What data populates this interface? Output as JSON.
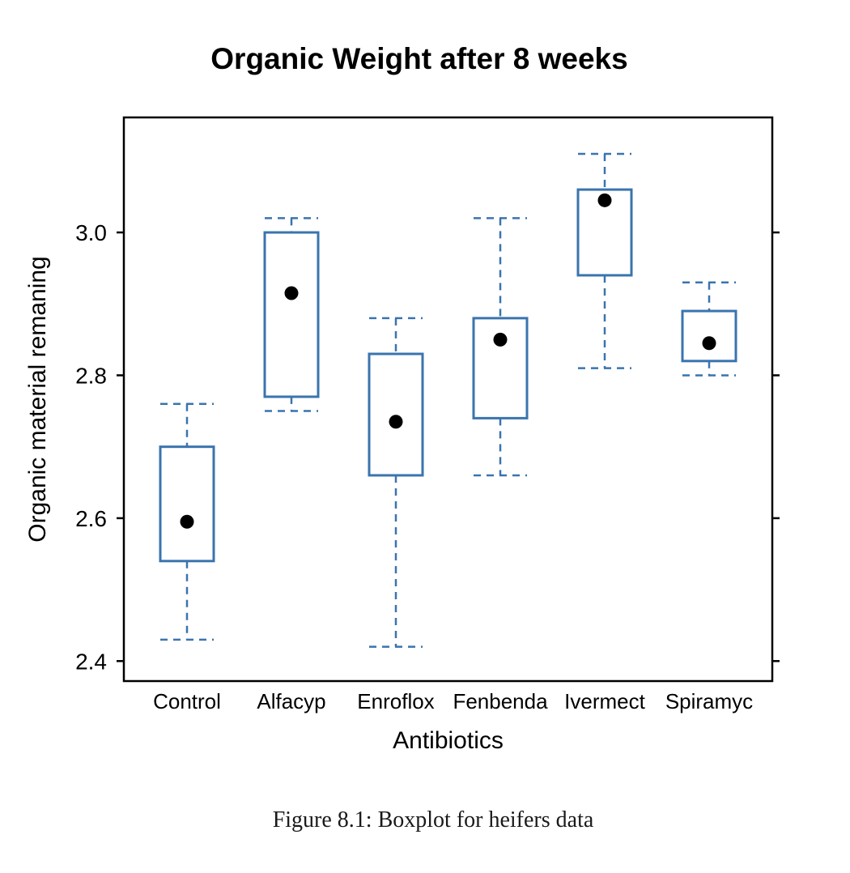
{
  "figure": {
    "caption": "Figure 8.1: Boxplot for heifers data"
  },
  "chart_data": {
    "type": "boxplot",
    "title": "Organic Weight after 8 weeks",
    "xlabel": "Antibiotics",
    "ylabel": "Organic material remaning",
    "categories": [
      "Control",
      "Alfacyp",
      "Enroflox",
      "Fenbenda",
      "Ivermect",
      "Spiramyc"
    ],
    "y_ticks": [
      2.4,
      2.6,
      2.8,
      3.0
    ],
    "y_tick_labels": [
      "2.4",
      "2.6",
      "2.8",
      "3.0"
    ],
    "ylim": [
      2.372,
      3.161
    ],
    "grid": false,
    "legend": "none",
    "whisker_style": "dashed",
    "marker": "filled-black-circle",
    "series": [
      {
        "name": "Control",
        "whisker_low": 2.43,
        "q1": 2.54,
        "point": 2.595,
        "q3": 2.7,
        "whisker_high": 2.76
      },
      {
        "name": "Alfacyp",
        "whisker_low": 2.75,
        "q1": 2.77,
        "point": 2.915,
        "q3": 3.0,
        "whisker_high": 3.02
      },
      {
        "name": "Enroflox",
        "whisker_low": 2.42,
        "q1": 2.66,
        "point": 2.735,
        "q3": 2.83,
        "whisker_high": 2.88
      },
      {
        "name": "Fenbenda",
        "whisker_low": 2.66,
        "q1": 2.74,
        "point": 2.85,
        "q3": 2.88,
        "whisker_high": 3.02
      },
      {
        "name": "Ivermect",
        "whisker_low": 2.81,
        "q1": 2.94,
        "point": 3.045,
        "q3": 3.06,
        "whisker_high": 3.11
      },
      {
        "name": "Spiramyc",
        "whisker_low": 2.8,
        "q1": 2.82,
        "point": 2.845,
        "q3": 2.89,
        "whisker_high": 2.93
      }
    ],
    "colors": {
      "box": "#3a74ae",
      "frame": "#000000",
      "point": "#000000",
      "background": "#ffffff"
    }
  }
}
